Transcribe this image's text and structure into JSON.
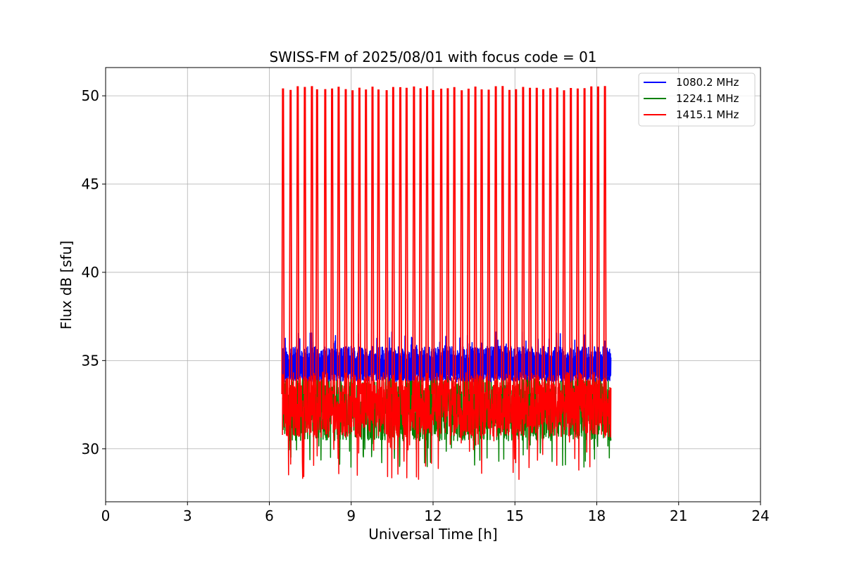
{
  "chart_data": {
    "type": "line",
    "title": "SWISS-FM of 2025/08/01 with focus code = 01",
    "xlabel": "Universal Time [h]",
    "ylabel": "Flux dB [sfu]",
    "xlim": [
      0,
      24
    ],
    "ylim": [
      27.0,
      51.6
    ],
    "xticks": [
      0,
      3,
      6,
      9,
      12,
      15,
      18,
      21,
      24
    ],
    "xtick_labels": [
      "0",
      "3",
      "6",
      "9",
      "12",
      "15",
      "18",
      "21",
      "24"
    ],
    "yticks": [
      30,
      35,
      40,
      45,
      50
    ],
    "ytick_labels": [
      "30",
      "35",
      "40",
      "45",
      "50"
    ],
    "grid": true,
    "legend_position": "top-right",
    "series": [
      {
        "name": "1080.2 MHz",
        "color": "#0000ff",
        "x_range": [
          6.48,
          18.52
        ],
        "baseline": 34.6,
        "oscillation_low": 33.8,
        "oscillation_high": 35.8,
        "peak_max": 36.7
      },
      {
        "name": "1224.1 MHz",
        "color": "#008000",
        "x_range": [
          6.48,
          18.52
        ],
        "baseline": 32.3,
        "spread_low": 30.3,
        "spread_high": 34.0,
        "min": 28.9
      },
      {
        "name": "1415.1 MHz",
        "color": "#ff0000",
        "x_range": [
          6.48,
          18.52
        ],
        "baseline": 32.5,
        "spread_low": 30.5,
        "spread_high": 34.2,
        "min": 28.2,
        "spike_value": 50.4,
        "spike_times": [
          6.5,
          6.78,
          7.04,
          7.3,
          7.56,
          7.75,
          8.05,
          8.3,
          8.54,
          8.8,
          9.05,
          9.3,
          9.54,
          9.78,
          10.0,
          10.3,
          10.54,
          10.8,
          11.03,
          11.3,
          11.54,
          11.78,
          12.0,
          12.3,
          12.54,
          12.78,
          13.05,
          13.3,
          13.55,
          13.78,
          14.04,
          14.3,
          14.55,
          14.8,
          15.04,
          15.3,
          15.55,
          15.8,
          16.04,
          16.3,
          16.55,
          16.8,
          17.05,
          17.3,
          17.55,
          17.8,
          18.05,
          18.3
        ]
      }
    ]
  }
}
